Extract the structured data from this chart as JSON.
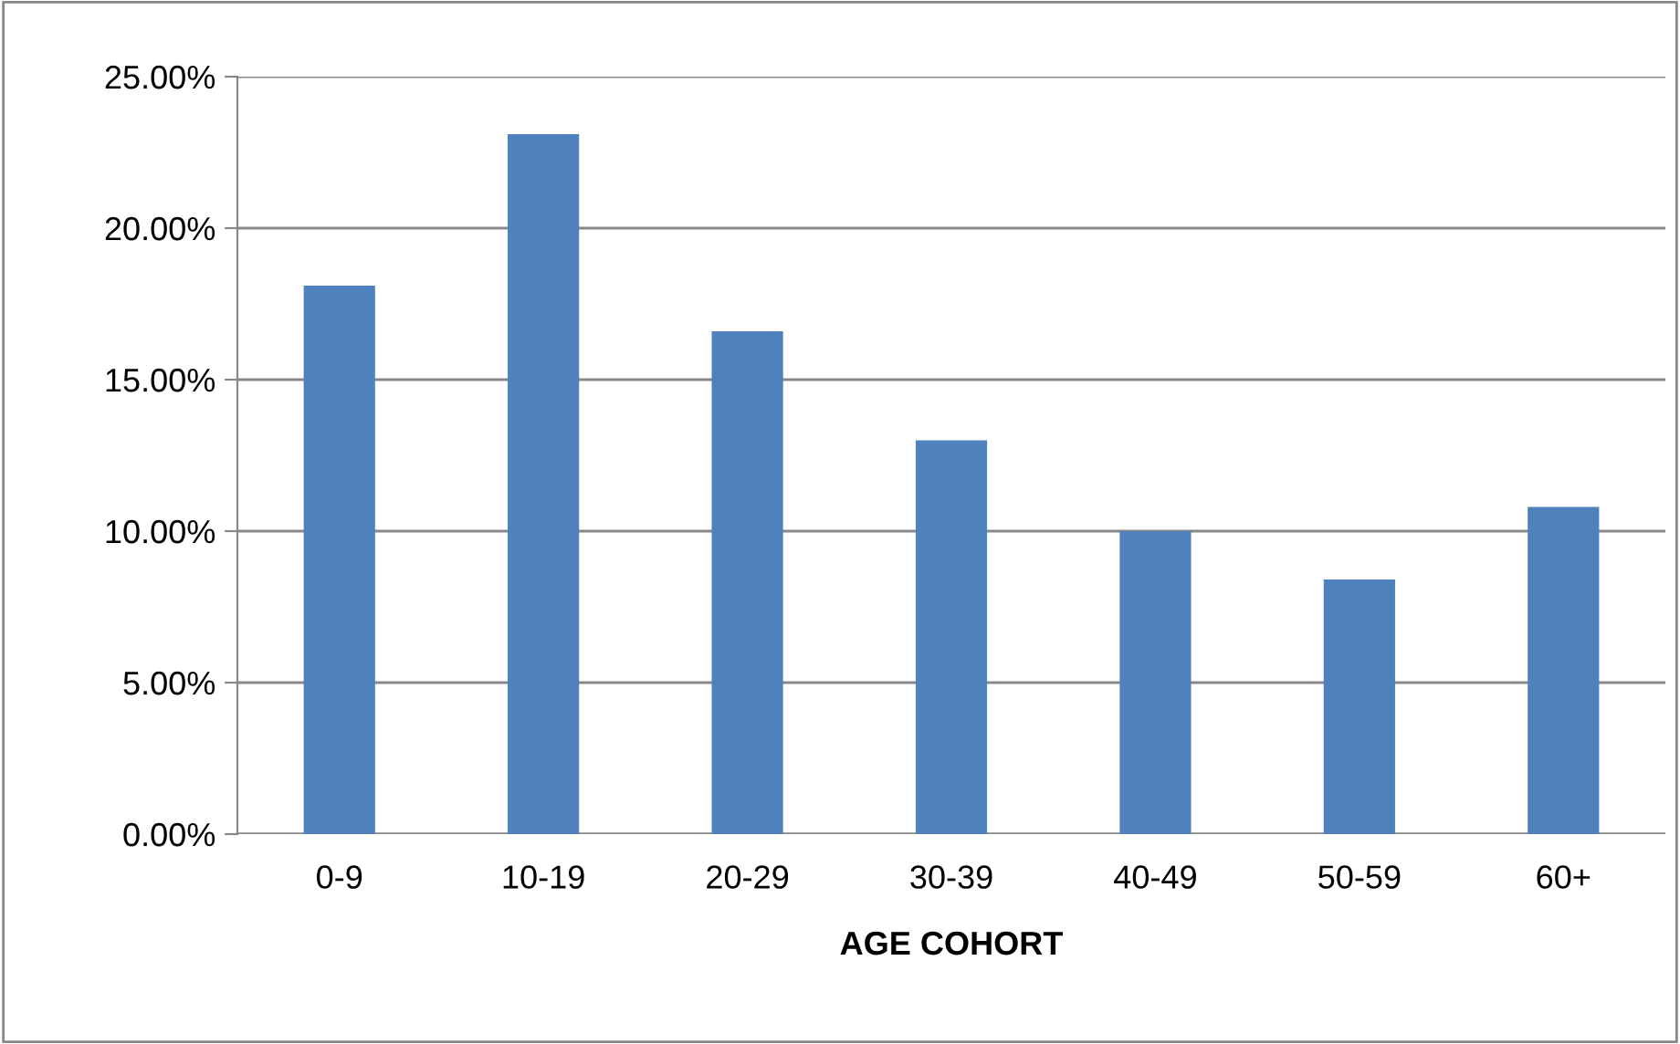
{
  "chart_data": {
    "type": "bar",
    "xlabel": "AGE COHORT",
    "categories": [
      "0-9",
      "10-19",
      "20-29",
      "30-39",
      "40-49",
      "50-59",
      "60+"
    ],
    "values": [
      18.1,
      23.1,
      16.6,
      13.0,
      10.0,
      8.4,
      10.8
    ],
    "color": "#4f81bd",
    "ylim": [
      0,
      25
    ],
    "yticks": [
      {
        "value": 0,
        "label": "0.00%"
      },
      {
        "value": 5,
        "label": "5.00%"
      },
      {
        "value": 10,
        "label": "10.00%"
      },
      {
        "value": 15,
        "label": "15.00%"
      },
      {
        "value": 20,
        "label": "20.00%"
      },
      {
        "value": 25,
        "label": "25.00%"
      }
    ],
    "grid": "y",
    "legend": false
  }
}
